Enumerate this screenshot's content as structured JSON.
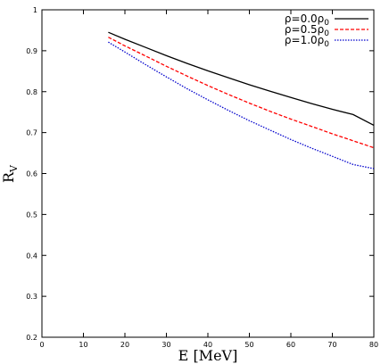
{
  "chart_data": {
    "type": "line",
    "xlabel": "E [MeV]",
    "ylabel": "R",
    "ylabel_sub": "V",
    "xlim": [
      0,
      80
    ],
    "ylim": [
      0.2,
      1.0
    ],
    "x_ticks": [
      0,
      10,
      20,
      30,
      40,
      50,
      60,
      70,
      80
    ],
    "x_tick_labels": [
      "0",
      "10",
      "20",
      "30",
      "40",
      "50",
      "60",
      "70",
      "80"
    ],
    "y_ticks": [
      0.2,
      0.3,
      0.4,
      0.5,
      0.6,
      0.7,
      0.8,
      0.9,
      1.0
    ],
    "y_tick_labels": [
      "0.2",
      "0.3",
      "0.4",
      "0.5",
      "0.6",
      "0.7",
      "0.8",
      "0.9",
      "1"
    ],
    "grid": false,
    "legend_position": "top-right",
    "series": [
      {
        "name": "ρ=0.0ρ",
        "name_sub": "0",
        "color": "#000000",
        "dash": "solid",
        "x": [
          16,
          20,
          25,
          30,
          35,
          40,
          45,
          50,
          55,
          60,
          65,
          70,
          75,
          80
        ],
        "y": [
          0.945,
          0.928,
          0.908,
          0.888,
          0.869,
          0.851,
          0.834,
          0.817,
          0.801,
          0.786,
          0.771,
          0.757,
          0.744,
          0.718
        ]
      },
      {
        "name": "ρ=0.5ρ",
        "name_sub": "0",
        "color": "#ff0000",
        "dash": "dashed",
        "x": [
          16,
          20,
          25,
          30,
          35,
          40,
          45,
          50,
          55,
          60,
          65,
          70,
          75,
          80
        ],
        "y": [
          0.933,
          0.912,
          0.887,
          0.862,
          0.838,
          0.815,
          0.793,
          0.772,
          0.752,
          0.733,
          0.715,
          0.697,
          0.68,
          0.663
        ]
      },
      {
        "name": "ρ=1.0ρ",
        "name_sub": "0",
        "color": "#0000cc",
        "dash": "dotted",
        "x": [
          16,
          20,
          25,
          30,
          35,
          40,
          45,
          50,
          55,
          60,
          65,
          70,
          75,
          80
        ],
        "y": [
          0.921,
          0.897,
          0.866,
          0.836,
          0.807,
          0.78,
          0.754,
          0.729,
          0.706,
          0.683,
          0.662,
          0.642,
          0.622,
          0.612
        ]
      }
    ]
  }
}
